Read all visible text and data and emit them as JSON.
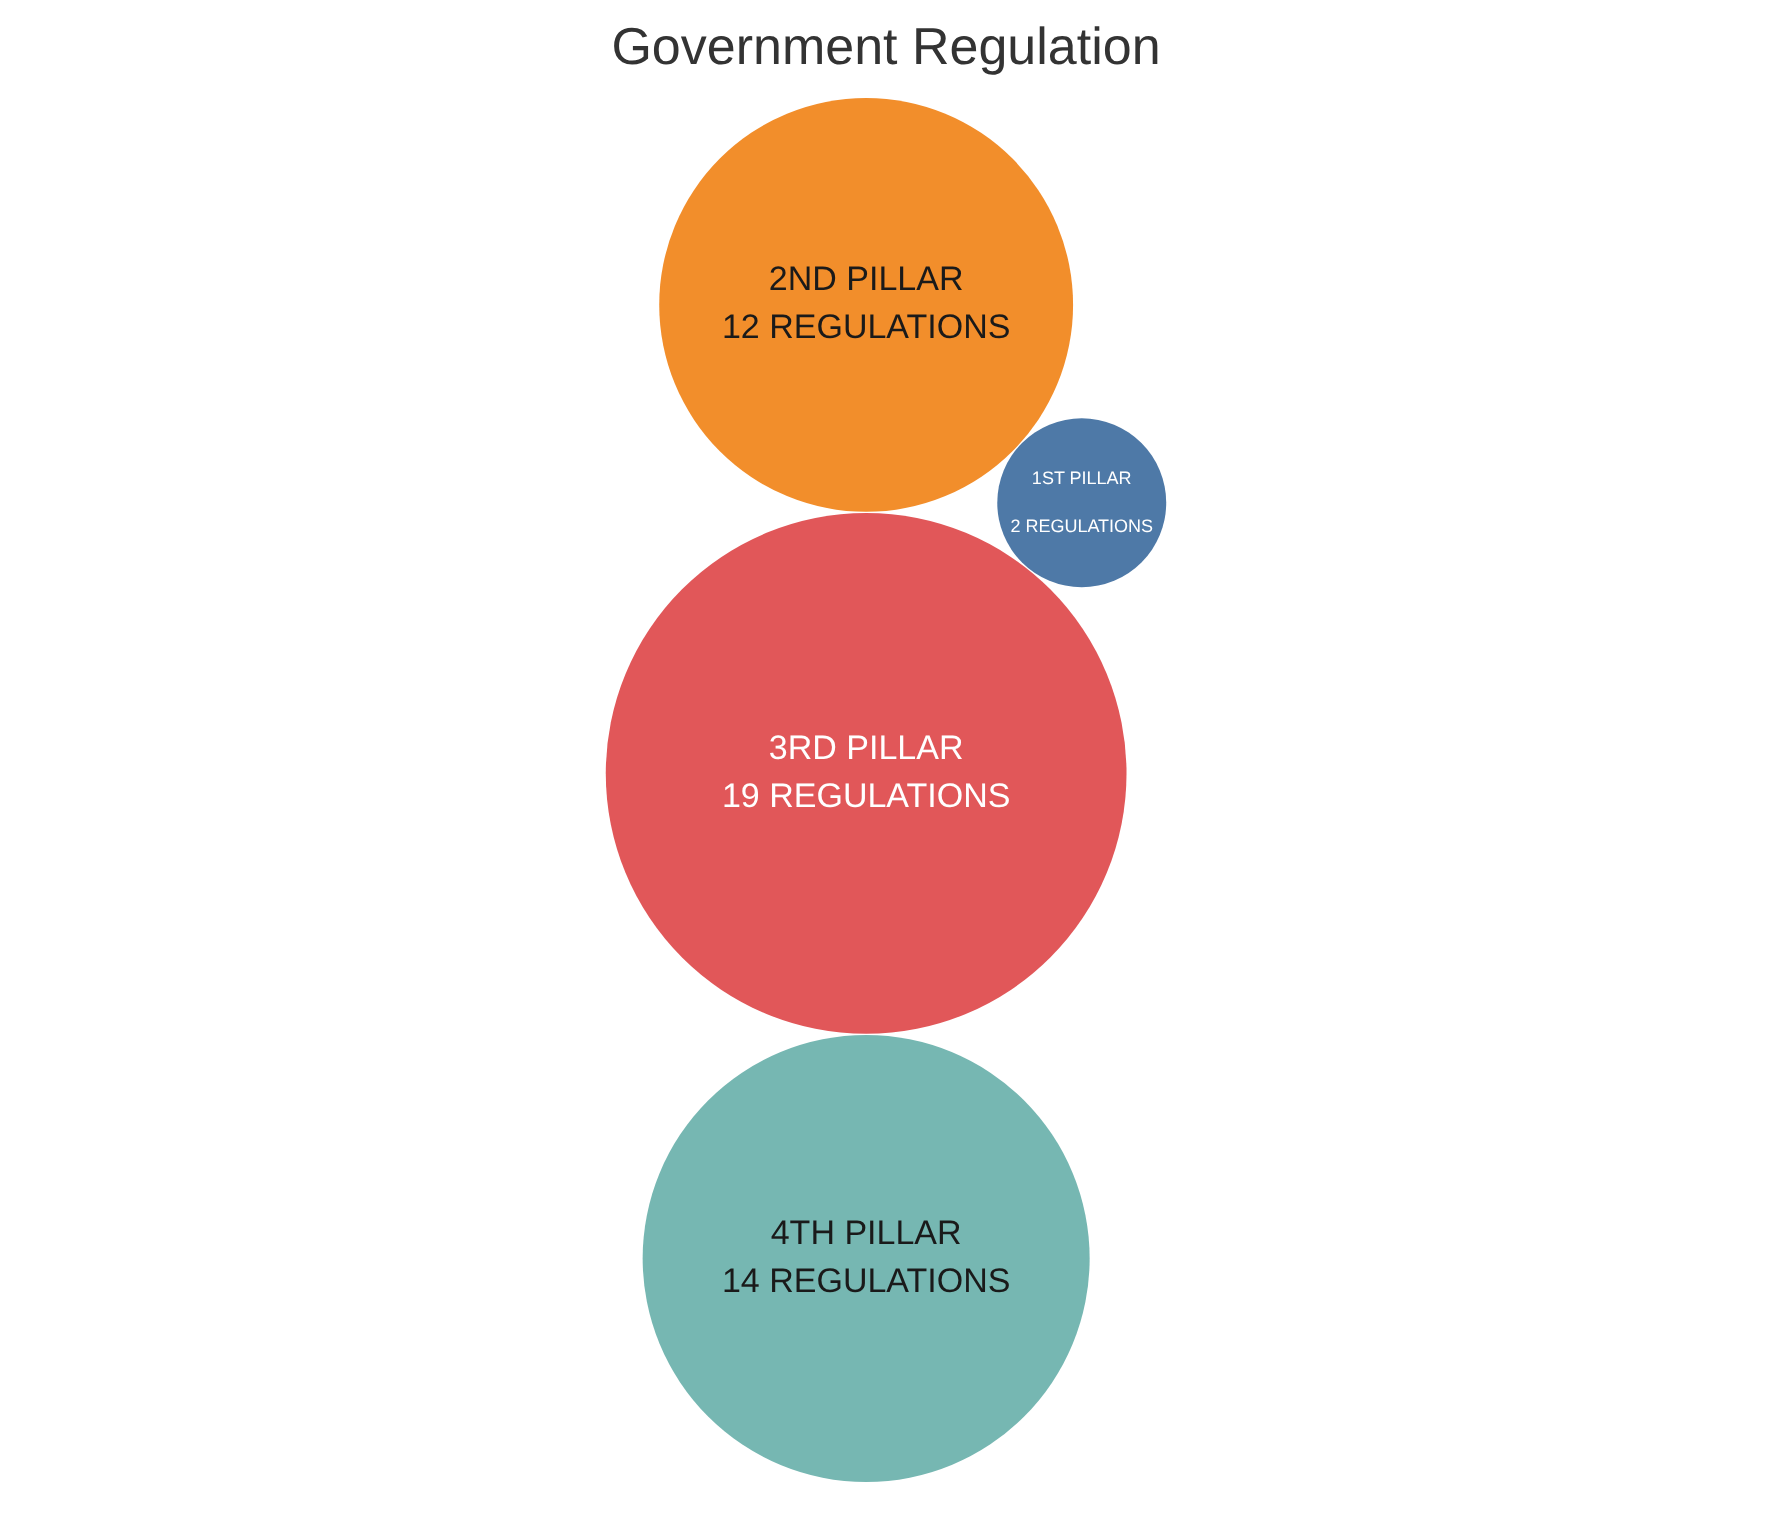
{
  "chart_data": {
    "type": "other",
    "title": "Government Regulation",
    "categories": [
      "4TH PILLAR",
      "1ST PILLAR",
      "2ND PILLAR",
      "3RD PILLAR"
    ],
    "values": [
      14,
      2,
      12,
      19
    ],
    "value_labels": [
      "14 REGULATIONS",
      "2 REGULATIONS",
      "12 REGULATIONS",
      "19 REGULATIONS"
    ],
    "colors": [
      "#76b7b2",
      "#4e79a7",
      "#f28e2b",
      "#e15759"
    ]
  }
}
